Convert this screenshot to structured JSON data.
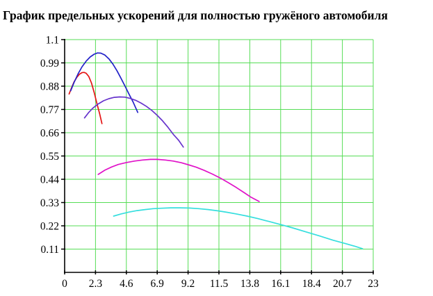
{
  "chart_data": {
    "type": "line",
    "title": "График предельных ускорений для полностью гружёного автомобиля",
    "xlabel": "",
    "ylabel": "",
    "xlim": [
      0,
      23
    ],
    "ylim": [
      0,
      1.1
    ],
    "grid": true,
    "legend_position": "none",
    "background_color": "#ffffff",
    "grid_color": "#55dd55",
    "axis_color": "#000000",
    "x_ticks": {
      "values": [
        0,
        2.3,
        4.6,
        6.9,
        9.2,
        11.5,
        13.8,
        16.1,
        18.4,
        20.7,
        23
      ],
      "labels": [
        "0",
        "2.3",
        "4.6",
        "6.9",
        "9.2",
        "11.5",
        "13.8",
        "16.1",
        "18.4",
        "20.7",
        "23"
      ]
    },
    "y_ticks": {
      "values": [
        0.11,
        0.22,
        0.33,
        0.44,
        0.55,
        0.66,
        0.77,
        0.88,
        0.99,
        1.1
      ],
      "labels": [
        "0.11",
        "0.22",
        "0.33",
        "0.44",
        "0.55",
        "0.66",
        "0.77",
        "0.88",
        "0.99",
        "1.1"
      ]
    },
    "series": [
      {
        "name": "red",
        "color": "#e41414",
        "points": [
          [
            0.33,
            0.843
          ],
          [
            0.5,
            0.87
          ],
          [
            0.7,
            0.9
          ],
          [
            0.9,
            0.921
          ],
          [
            1.1,
            0.936
          ],
          [
            1.3,
            0.944
          ],
          [
            1.45,
            0.945
          ],
          [
            1.6,
            0.941
          ],
          [
            1.8,
            0.926
          ],
          [
            2.0,
            0.895
          ],
          [
            2.2,
            0.85
          ],
          [
            2.4,
            0.8
          ],
          [
            2.6,
            0.752
          ],
          [
            2.78,
            0.703
          ]
        ]
      },
      {
        "name": "blue",
        "color": "#2222c8",
        "points": [
          [
            0.45,
            0.858
          ],
          [
            0.7,
            0.897
          ],
          [
            1.0,
            0.938
          ],
          [
            1.3,
            0.972
          ],
          [
            1.6,
            0.998
          ],
          [
            1.9,
            1.018
          ],
          [
            2.2,
            1.031
          ],
          [
            2.45,
            1.037
          ],
          [
            2.7,
            1.036
          ],
          [
            3.0,
            1.027
          ],
          [
            3.3,
            1.009
          ],
          [
            3.6,
            0.984
          ],
          [
            3.9,
            0.953
          ],
          [
            4.2,
            0.917
          ],
          [
            4.5,
            0.88
          ],
          [
            4.8,
            0.842
          ],
          [
            5.1,
            0.805
          ],
          [
            5.45,
            0.756
          ]
        ]
      },
      {
        "name": "violet",
        "color": "#6633cc",
        "points": [
          [
            1.48,
            0.73
          ],
          [
            1.8,
            0.756
          ],
          [
            2.1,
            0.776
          ],
          [
            2.5,
            0.796
          ],
          [
            2.9,
            0.811
          ],
          [
            3.3,
            0.821
          ],
          [
            3.7,
            0.827
          ],
          [
            4.1,
            0.829
          ],
          [
            4.5,
            0.828
          ],
          [
            4.9,
            0.822
          ],
          [
            5.3,
            0.813
          ],
          [
            5.7,
            0.8
          ],
          [
            6.1,
            0.784
          ],
          [
            6.5,
            0.765
          ],
          [
            6.9,
            0.742
          ],
          [
            7.3,
            0.716
          ],
          [
            7.7,
            0.686
          ],
          [
            8.1,
            0.652
          ],
          [
            8.5,
            0.624
          ],
          [
            8.85,
            0.592
          ]
        ]
      },
      {
        "name": "magenta",
        "color": "#e012c8",
        "points": [
          [
            2.5,
            0.463
          ],
          [
            3.0,
            0.483
          ],
          [
            3.5,
            0.498
          ],
          [
            4.0,
            0.51
          ],
          [
            4.6,
            0.519
          ],
          [
            5.2,
            0.526
          ],
          [
            5.8,
            0.531
          ],
          [
            6.4,
            0.534
          ],
          [
            6.9,
            0.534
          ],
          [
            7.5,
            0.531
          ],
          [
            8.1,
            0.526
          ],
          [
            8.7,
            0.518
          ],
          [
            9.2,
            0.509
          ],
          [
            9.8,
            0.497
          ],
          [
            10.4,
            0.482
          ],
          [
            11.0,
            0.465
          ],
          [
            11.6,
            0.446
          ],
          [
            12.2,
            0.424
          ],
          [
            12.8,
            0.401
          ],
          [
            13.4,
            0.376
          ],
          [
            13.9,
            0.355
          ],
          [
            14.5,
            0.335
          ]
        ]
      },
      {
        "name": "cyan",
        "color": "#35dede",
        "points": [
          [
            3.65,
            0.266
          ],
          [
            4.2,
            0.276
          ],
          [
            4.8,
            0.285
          ],
          [
            5.4,
            0.292
          ],
          [
            6.0,
            0.297
          ],
          [
            6.6,
            0.301
          ],
          [
            7.2,
            0.303
          ],
          [
            7.9,
            0.305
          ],
          [
            8.6,
            0.305
          ],
          [
            9.3,
            0.304
          ],
          [
            10.0,
            0.301
          ],
          [
            10.7,
            0.297
          ],
          [
            11.4,
            0.291
          ],
          [
            12.1,
            0.284
          ],
          [
            12.8,
            0.276
          ],
          [
            13.6,
            0.266
          ],
          [
            14.4,
            0.254
          ],
          [
            15.2,
            0.241
          ],
          [
            16.1,
            0.226
          ],
          [
            17.0,
            0.21
          ],
          [
            18.0,
            0.191
          ],
          [
            19.0,
            0.172
          ],
          [
            20.0,
            0.152
          ],
          [
            21.0,
            0.135
          ],
          [
            21.7,
            0.122
          ],
          [
            22.2,
            0.112
          ]
        ]
      }
    ]
  }
}
